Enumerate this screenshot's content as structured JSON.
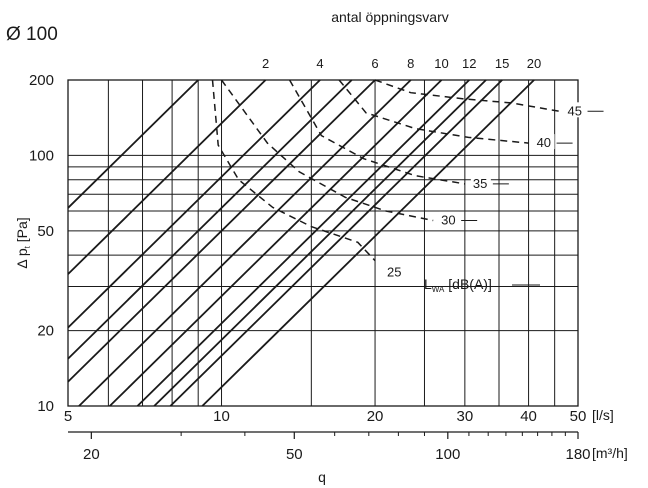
{
  "chart_data": {
    "type": "line",
    "title": "Ø 100",
    "top_axis_title": "antal öppningsvarv",
    "x_axis": {
      "scale": "log",
      "range": [
        5,
        50
      ],
      "unit": "[l/s]",
      "major_ticks": [
        5,
        10,
        20,
        30,
        40,
        50
      ],
      "minor_ticks": [
        6,
        7,
        8,
        9,
        15,
        25,
        35,
        45
      ],
      "major_labels": [
        "5",
        "10",
        "20",
        "30",
        "40",
        "50"
      ]
    },
    "x2_axis": {
      "scale": "log",
      "range": [
        18,
        180
      ],
      "unit": "[m³/h]",
      "title": "q",
      "major_ticks": [
        20,
        50,
        100,
        180
      ],
      "minor_ticks": [
        30,
        40,
        60,
        70,
        80,
        90,
        110,
        120,
        130,
        140,
        150,
        160,
        170
      ],
      "major_labels": [
        "20",
        "50",
        "100",
        "180"
      ]
    },
    "y_axis": {
      "scale": "log",
      "range": [
        10,
        200
      ],
      "title": "Δ pt [Pa]",
      "title_parts": [
        "Δ p",
        "t",
        " [Pa]"
      ],
      "major_ticks": [
        10,
        20,
        50,
        100,
        200
      ],
      "minor_ticks": [
        30,
        40,
        60,
        70,
        80,
        90
      ],
      "major_labels": [
        "10",
        "20",
        "50",
        "100",
        "200"
      ]
    },
    "openings": {
      "labels": [
        "2",
        "4",
        "6",
        "8",
        "10",
        "12",
        "15",
        "20"
      ],
      "q_at_200pa": [
        12.2,
        15.6,
        20.0,
        23.5,
        27.0,
        30.6,
        35.5,
        41.0
      ],
      "extra_line_q_at_200pa": [
        9.0,
        18.0,
        33.0
      ]
    },
    "sound_levels": {
      "unit_label_parts": [
        "L",
        "WA",
        " [dB(A)]"
      ],
      "labels": [
        "25",
        "30",
        "35",
        "40",
        "45"
      ],
      "curves": [
        {
          "name": "25",
          "points": [
            [
              9.6,
              200
            ],
            [
              9.85,
              110
            ],
            [
              10.8,
              80
            ],
            [
              12.6,
              62
            ],
            [
              15.0,
              52
            ],
            [
              18.5,
              45
            ],
            [
              20.0,
              38
            ]
          ]
        },
        {
          "name": "30",
          "points": [
            [
              10.0,
              200
            ],
            [
              12.3,
              112
            ],
            [
              14.2,
              86
            ],
            [
              17.5,
              68
            ],
            [
              21.0,
              60
            ],
            [
              26.0,
              55
            ]
          ]
        },
        {
          "name": "35",
          "points": [
            [
              13.6,
              200
            ],
            [
              15.7,
              120
            ],
            [
              19.0,
              97
            ],
            [
              24.0,
              83
            ],
            [
              30.0,
              77
            ]
          ]
        },
        {
          "name": "40",
          "points": [
            [
              17.0,
              200
            ],
            [
              19.2,
              148
            ],
            [
              24.0,
              128
            ],
            [
              30.5,
              118
            ],
            [
              40.0,
              112
            ]
          ]
        },
        {
          "name": "45",
          "points": [
            [
              20.0,
              200
            ],
            [
              23.5,
              178
            ],
            [
              30.0,
              168
            ],
            [
              37.0,
              162
            ],
            [
              46.0,
              150
            ]
          ]
        }
      ]
    },
    "grid": true
  }
}
